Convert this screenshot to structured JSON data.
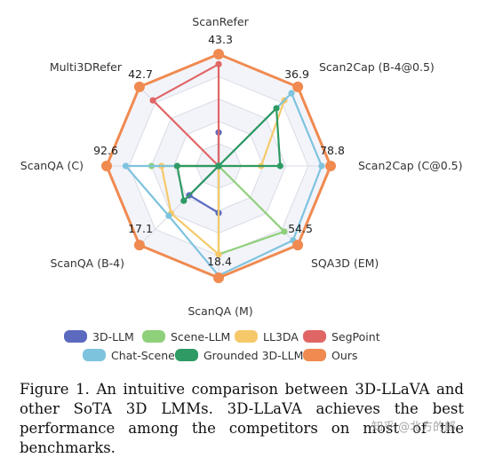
{
  "chart_data": {
    "type": "radar",
    "axes": [
      "ScanRefer",
      "Scan2Cap (B-4@0.5)",
      "Scan2Cap (C@0.5)",
      "SQA3D (EM)",
      "ScanQA (M)",
      "ScanQA (B-4)",
      "ScanQA (C)",
      "Multi3DRefer"
    ],
    "axis_max_labels": [
      "43.3",
      "36.9",
      "78.8",
      "54.5",
      "18.4",
      "17.1",
      "92.6",
      "42.7"
    ],
    "scale": "each axis normalized to its maximum; values given as fraction of the outer ring",
    "grid": true,
    "legend_position": "bottom",
    "series": [
      {
        "name": "3D-LLM",
        "color": "#5b6abf",
        "values": [
          0.3,
          0.0,
          0.0,
          0.0,
          0.42,
          0.37,
          0.0,
          0.0
        ]
      },
      {
        "name": "Scene-LLM",
        "color": "#8fd07a",
        "values": [
          0.0,
          0.0,
          0.0,
          0.83,
          0.79,
          0.0,
          0.6,
          0.0
        ]
      },
      {
        "name": "LL3DA",
        "color": "#f5c96a",
        "values": [
          0.0,
          0.83,
          0.38,
          0.0,
          0.79,
          0.6,
          0.51,
          0.0
        ]
      },
      {
        "name": "SegPoint",
        "color": "#e06666",
        "values": [
          0.91,
          0.0,
          0.0,
          0.0,
          0.0,
          0.0,
          0.0,
          0.83
        ]
      },
      {
        "name": "Chat-Scene",
        "color": "#7ec3de",
        "values": [
          0.0,
          0.92,
          0.92,
          0.94,
          0.98,
          0.63,
          0.83,
          0.0
        ]
      },
      {
        "name": "Grounded 3D-LLM",
        "color": "#2e9a64",
        "values": [
          0.0,
          0.73,
          0.55,
          0.0,
          0.0,
          0.44,
          0.37,
          0.0
        ]
      },
      {
        "name": "Ours",
        "color": "#f08a50",
        "values": [
          1.0,
          1.0,
          1.0,
          1.0,
          1.0,
          1.0,
          1.0,
          1.0
        ]
      }
    ]
  },
  "caption": "Figure 1.  An intuitive comparison between 3D-LLaVA and other SoTA 3D LMMs.  3D-LLaVA achieves the best performance among the competitors on most of the benchmarks.",
  "watermark": "知乎 @北方的郎"
}
